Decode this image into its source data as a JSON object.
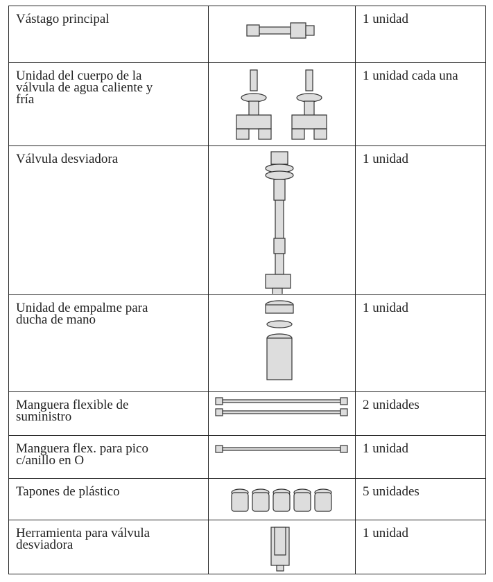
{
  "table": {
    "rows": [
      {
        "name": [
          "Vástago principal"
        ],
        "quantity": "1 unidad"
      },
      {
        "name": [
          "Unidad del cuerpo de la",
          "válvula de agua caliente y",
          "fría"
        ],
        "quantity": "1 unidad cada una"
      },
      {
        "name": [
          "Válvula desviadora"
        ],
        "quantity": "1 unidad"
      },
      {
        "name": [
          "Unidad de empalme para",
          "ducha de mano"
        ],
        "quantity": "1 unidad"
      },
      {
        "name": [
          "Manguera flexible de",
          "suministro"
        ],
        "quantity": "2 unidades"
      },
      {
        "name": [
          "Manguera flex. para pico",
          "c/anillo en O"
        ],
        "quantity": "1 unidad"
      },
      {
        "name": [
          "Tapones de plástico"
        ],
        "quantity": "5 unidades"
      },
      {
        "name": [
          "Herramienta para válvula",
          "desviadora"
        ],
        "quantity": "1 unidad"
      }
    ]
  }
}
